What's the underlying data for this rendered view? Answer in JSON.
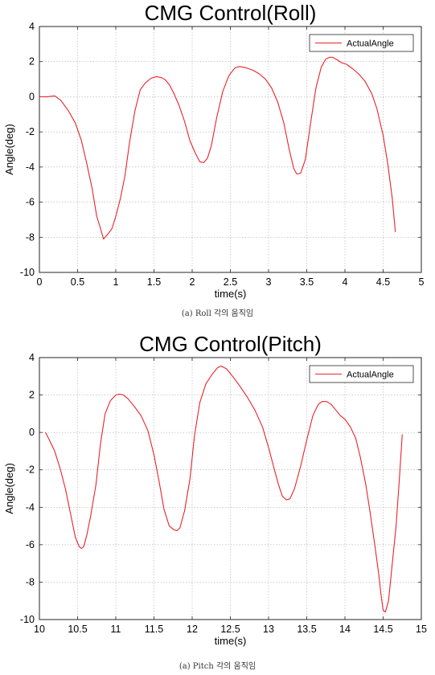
{
  "chart_data": [
    {
      "type": "line",
      "title": "CMG Control(Roll)",
      "xlabel": "time(s)",
      "ylabel": "Angle(deg)",
      "xlim": [
        0,
        5
      ],
      "ylim": [
        -10,
        4
      ],
      "xticks": [
        0,
        0.5,
        1,
        1.5,
        2,
        2.5,
        3,
        3.5,
        4,
        4.5,
        5
      ],
      "xtick_labels": [
        "0",
        "0.5",
        "1",
        "1.5",
        "2",
        "2.5",
        "3",
        "3.5",
        "4",
        "4.5",
        "5"
      ],
      "yticks": [
        -10,
        -8,
        -6,
        -4,
        -2,
        0,
        2,
        4
      ],
      "ytick_labels": [
        "-10",
        "-8",
        "-6",
        "-4",
        "-2",
        "0",
        "2",
        "4"
      ],
      "grid": true,
      "legend": "top-right",
      "caption": "(a) Roll 각의 움직임",
      "series": [
        {
          "name": "ActualAngle",
          "color": "#e8232b",
          "x": [
            0,
            0.1,
            0.2,
            0.28,
            0.38,
            0.47,
            0.55,
            0.62,
            0.69,
            0.75,
            0.8,
            0.84,
            0.9,
            0.95,
            1.0,
            1.06,
            1.12,
            1.18,
            1.25,
            1.32,
            1.39,
            1.46,
            1.53,
            1.59,
            1.64,
            1.7,
            1.76,
            1.83,
            1.9,
            1.97,
            2.04,
            2.1,
            2.15,
            2.2,
            2.25,
            2.32,
            2.4,
            2.48,
            2.56,
            2.62,
            2.68,
            2.74,
            2.8,
            2.88,
            2.96,
            3.04,
            3.12,
            3.2,
            3.27,
            3.33,
            3.37,
            3.42,
            3.48,
            3.55,
            3.62,
            3.69,
            3.75,
            3.8,
            3.84,
            3.9,
            3.95,
            4.02,
            4.1,
            4.18,
            4.26,
            4.35,
            4.42,
            4.5,
            4.56,
            4.62,
            4.66
          ],
          "y": [
            0,
            0,
            0.05,
            -0.2,
            -0.8,
            -1.5,
            -2.5,
            -3.8,
            -5.2,
            -6.8,
            -7.5,
            -8.1,
            -7.8,
            -7.5,
            -6.8,
            -5.8,
            -4.5,
            -2.6,
            -0.8,
            0.4,
            0.8,
            1.05,
            1.15,
            1.1,
            1.0,
            0.7,
            0.2,
            -0.5,
            -1.4,
            -2.5,
            -3.2,
            -3.7,
            -3.75,
            -3.5,
            -2.8,
            -1.2,
            0.3,
            1.2,
            1.65,
            1.72,
            1.68,
            1.6,
            1.5,
            1.3,
            1.0,
            0.5,
            -0.3,
            -1.5,
            -3.0,
            -4.1,
            -4.4,
            -4.35,
            -3.6,
            -1.5,
            0.5,
            1.7,
            2.15,
            2.25,
            2.25,
            2.1,
            1.95,
            1.85,
            1.6,
            1.3,
            0.9,
            0.2,
            -0.7,
            -2.2,
            -3.8,
            -5.8,
            -7.7
          ]
        }
      ]
    },
    {
      "type": "line",
      "title": "CMG Control(Pitch)",
      "xlabel": "time(s)",
      "ylabel": "Angle(deg)",
      "xlim": [
        10,
        15
      ],
      "ylim": [
        -10,
        4
      ],
      "xticks": [
        10,
        10.5,
        11,
        11.5,
        12,
        12.5,
        13,
        13.5,
        14,
        14.5,
        15
      ],
      "xtick_labels": [
        "10",
        "10.5",
        "11",
        "11.5",
        "12",
        "12.5",
        "13",
        "13.5",
        "14",
        "14.5",
        "15"
      ],
      "yticks": [
        -10,
        -8,
        -6,
        -4,
        -2,
        0,
        2,
        4
      ],
      "ytick_labels": [
        "-10",
        "-8",
        "-6",
        "-4",
        "-2",
        "0",
        "2",
        "4"
      ],
      "grid": true,
      "legend": "top-right",
      "caption": "(a) Pitch 각의 움직임",
      "series": [
        {
          "name": "ActualAngle",
          "color": "#e8232b",
          "x": [
            10.08,
            10.13,
            10.2,
            10.27,
            10.34,
            10.41,
            10.47,
            10.52,
            10.55,
            10.58,
            10.62,
            10.67,
            10.74,
            10.8,
            10.86,
            10.93,
            11.0,
            11.05,
            11.1,
            11.16,
            11.24,
            11.33,
            11.42,
            11.5,
            11.57,
            11.63,
            11.7,
            11.76,
            11.8,
            11.84,
            11.9,
            11.97,
            12.03,
            12.1,
            12.18,
            12.26,
            12.33,
            12.38,
            12.45,
            12.53,
            12.62,
            12.72,
            12.82,
            12.92,
            13.0,
            13.07,
            13.13,
            13.18,
            13.23,
            13.28,
            13.34,
            13.42,
            13.5,
            13.58,
            13.65,
            13.7,
            13.76,
            13.82,
            13.88,
            13.94,
            14.0,
            14.07,
            14.14,
            14.2,
            14.27,
            14.33,
            14.39,
            14.44,
            14.47,
            14.5,
            14.53,
            14.57,
            14.62,
            14.67,
            14.71,
            14.75
          ],
          "y": [
            0,
            -0.4,
            -1.0,
            -1.9,
            -3.0,
            -4.4,
            -5.6,
            -6.1,
            -6.2,
            -6.1,
            -5.5,
            -4.5,
            -2.8,
            -0.6,
            1.0,
            1.7,
            2.0,
            2.05,
            2.0,
            1.8,
            1.4,
            0.9,
            0.1,
            -1.2,
            -2.7,
            -4.1,
            -5.0,
            -5.2,
            -5.25,
            -5.1,
            -4.2,
            -2.5,
            -0.2,
            1.6,
            2.6,
            3.1,
            3.45,
            3.55,
            3.4,
            3.0,
            2.5,
            1.9,
            1.2,
            0.3,
            -0.8,
            -1.9,
            -2.8,
            -3.4,
            -3.6,
            -3.55,
            -3.0,
            -1.8,
            -0.4,
            0.9,
            1.5,
            1.65,
            1.65,
            1.5,
            1.2,
            0.9,
            0.7,
            0.3,
            -0.3,
            -1.3,
            -2.7,
            -4.3,
            -6.0,
            -7.5,
            -8.6,
            -9.5,
            -9.6,
            -9.0,
            -7.0,
            -5.0,
            -2.6,
            -0.1
          ]
        }
      ]
    }
  ]
}
